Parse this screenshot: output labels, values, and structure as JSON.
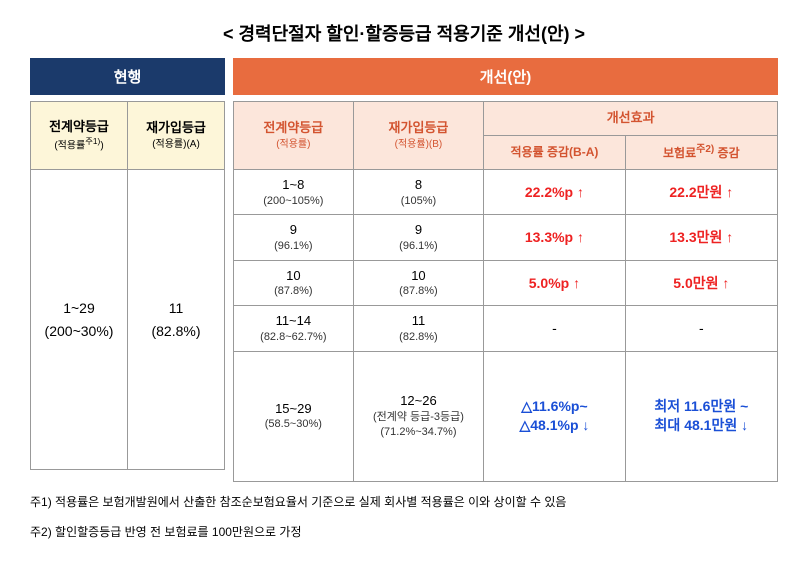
{
  "title": "< 경력단절자 할인·할증등급 적용기준 개선(안) >",
  "header": {
    "current": "현행",
    "improve": "개선(안)"
  },
  "left": {
    "col1": {
      "title": "전계약등급",
      "note": "(적용률<sup>주1)</sup>)"
    },
    "col2": {
      "title": "재가입등급",
      "note": "(적용률)(A)"
    },
    "body": {
      "c1_main": "1~29",
      "c1_sub": "(200~30%)",
      "c2_main": "11",
      "c2_sub": "(82.8%)"
    }
  },
  "right": {
    "col1": {
      "title": "전계약등급",
      "note": "(적용률)"
    },
    "col2": {
      "title": "재가입등급",
      "note": "(적용률)(B)"
    },
    "effect": "개선효과",
    "col3": "적용률 증감(B-A)",
    "col4": "보험료<sup>주2)</sup> 증감",
    "rows": [
      {
        "a_main": "1~8",
        "a_sub": "(200~105%)",
        "b_main": "8",
        "b_sub": "(105%)",
        "rate": "22.2%p",
        "rate_icon": "↑",
        "prem": "22.2만원",
        "prem_icon": "↑",
        "style": "red"
      },
      {
        "a_main": "9",
        "a_sub": "(96.1%)",
        "b_main": "9",
        "b_sub": "(96.1%)",
        "rate": "13.3%p",
        "rate_icon": "↑",
        "prem": "13.3만원",
        "prem_icon": "↑",
        "style": "red"
      },
      {
        "a_main": "10",
        "a_sub": "(87.8%)",
        "b_main": "10",
        "b_sub": "(87.8%)",
        "rate": "5.0%p",
        "rate_icon": "↑",
        "prem": "5.0만원",
        "prem_icon": "↑",
        "style": "red"
      },
      {
        "a_main": "11~14",
        "a_sub": "(82.8~62.7%)",
        "b_main": "11",
        "b_sub": "(82.8%)",
        "rate": "-",
        "rate_icon": "",
        "prem": "-",
        "prem_icon": "",
        "style": "dash"
      },
      {
        "a_main": "15~29",
        "a_sub": "(58.5~30%)",
        "b_main": "12~26",
        "b_sub_line1": "(전계약 등급-3등급)",
        "b_sub_line2": "(71.2%~34.7%)",
        "rate_line1": "△11.6%p~",
        "rate_line2": "△48.1%p",
        "rate_icon": "↓",
        "prem_line1": "최저 11.6만원 ~",
        "prem_line2": "최대 48.1만원",
        "prem_icon": "↓",
        "style": "blue",
        "tall": true
      }
    ]
  },
  "footnotes": {
    "f1": "주1) 적용률은 보험개발원에서 산출한 참조순보험요율서 기준으로 실제 회사별 적용률은 이와 상이할 수 있음",
    "f2": "주2) 할인할증등급 반영 전 보험료를 100만원으로 가정"
  },
  "colors": {
    "hdr_current": "#1b3a6b",
    "hdr_improve": "#e86c3f",
    "bg_left_sub": "#fdf6d9",
    "bg_right_sub": "#fce6db",
    "red": "#e22222",
    "blue": "#1a4fd6",
    "orange": "#d35430"
  }
}
